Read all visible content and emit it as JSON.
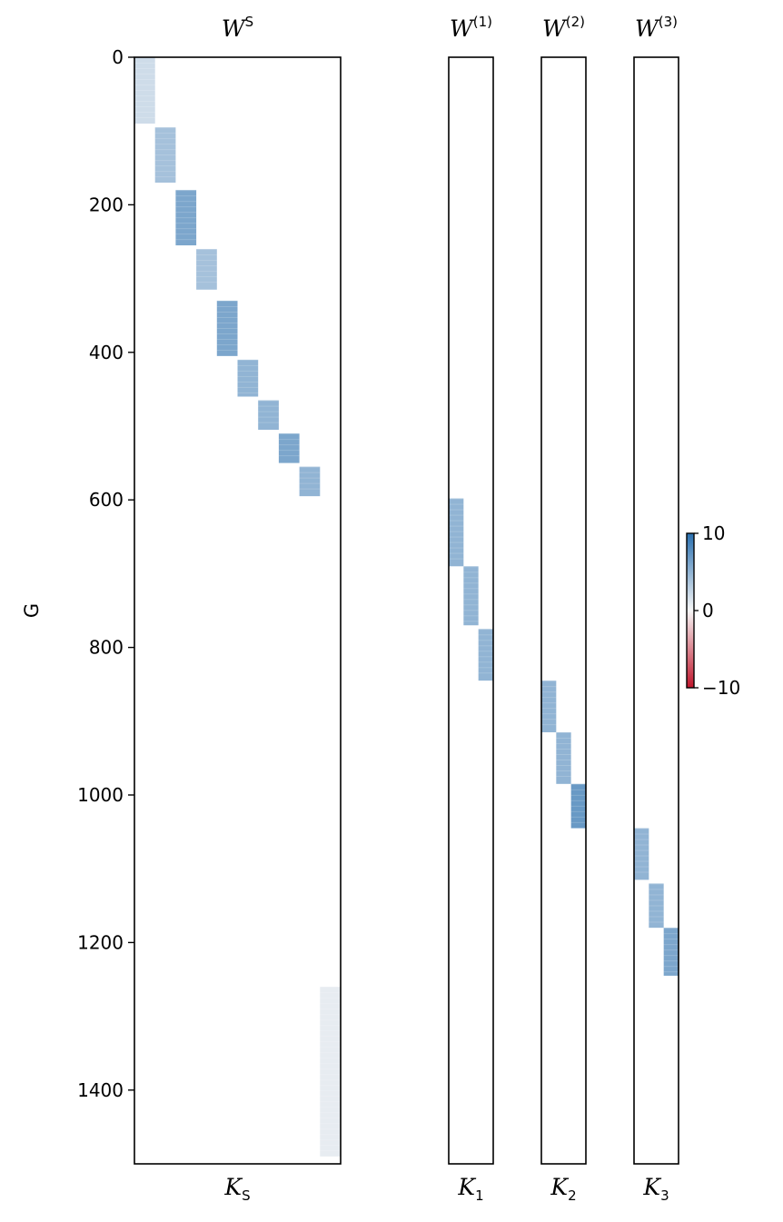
{
  "chart_data": {
    "type": "heatmap",
    "ylabel": "G",
    "ylim": [
      0,
      1500
    ],
    "y_ticks": [
      0,
      200,
      400,
      600,
      800,
      1000,
      1200,
      1400
    ],
    "y_tick_labels": [
      "0",
      "200",
      "400",
      "600",
      "800",
      "1000",
      "1200",
      "1400"
    ],
    "colorbar": {
      "cmap": "RdBu",
      "vmin": -10,
      "vmax": 10,
      "ticks": [
        10,
        0,
        -10
      ],
      "tick_labels": [
        "10",
        "0",
        "−10"
      ],
      "color_low": "#c0152b",
      "color_mid": "#f7f7f7",
      "color_high": "#2a70b0"
    },
    "panels": [
      {
        "title_base": "W",
        "title_sup": "S",
        "xlabel_base": "K",
        "xlabel_sub": "S",
        "columns": 10,
        "blocks": [
          {
            "col": 0,
            "y0": 0,
            "y1": 90,
            "value": 2
          },
          {
            "col": 1,
            "y0": 95,
            "y1": 170,
            "value": 4
          },
          {
            "col": 2,
            "y0": 180,
            "y1": 255,
            "value": 6
          },
          {
            "col": 3,
            "y0": 260,
            "y1": 315,
            "value": 4
          },
          {
            "col": 4,
            "y0": 330,
            "y1": 405,
            "value": 6
          },
          {
            "col": 5,
            "y0": 410,
            "y1": 460,
            "value": 5
          },
          {
            "col": 6,
            "y0": 465,
            "y1": 505,
            "value": 5
          },
          {
            "col": 7,
            "y0": 510,
            "y1": 550,
            "value": 6
          },
          {
            "col": 8,
            "y0": 555,
            "y1": 595,
            "value": 5
          },
          {
            "col": 9,
            "y0": 1260,
            "y1": 1490,
            "value": 0.8
          }
        ]
      },
      {
        "title_base": "W",
        "title_sup": "(1)",
        "xlabel_base": "K",
        "xlabel_sub": "1",
        "columns": 3,
        "blocks": [
          {
            "col": 0,
            "y0": 598,
            "y1": 690,
            "value": 5
          },
          {
            "col": 1,
            "y0": 690,
            "y1": 770,
            "value": 5
          },
          {
            "col": 2,
            "y0": 775,
            "y1": 845,
            "value": 5
          }
        ]
      },
      {
        "title_base": "W",
        "title_sup": "(2)",
        "xlabel_base": "K",
        "xlabel_sub": "2",
        "columns": 3,
        "blocks": [
          {
            "col": 0,
            "y0": 845,
            "y1": 915,
            "value": 5
          },
          {
            "col": 1,
            "y0": 915,
            "y1": 985,
            "value": 5
          },
          {
            "col": 2,
            "y0": 985,
            "y1": 1045,
            "value": 7
          }
        ]
      },
      {
        "title_base": "W",
        "title_sup": "(3)",
        "xlabel_base": "K",
        "xlabel_sub": "3",
        "columns": 3,
        "blocks": [
          {
            "col": 0,
            "y0": 1045,
            "y1": 1115,
            "value": 5
          },
          {
            "col": 1,
            "y0": 1120,
            "y1": 1180,
            "value": 5
          },
          {
            "col": 2,
            "y0": 1180,
            "y1": 1245,
            "value": 6
          }
        ]
      }
    ]
  }
}
